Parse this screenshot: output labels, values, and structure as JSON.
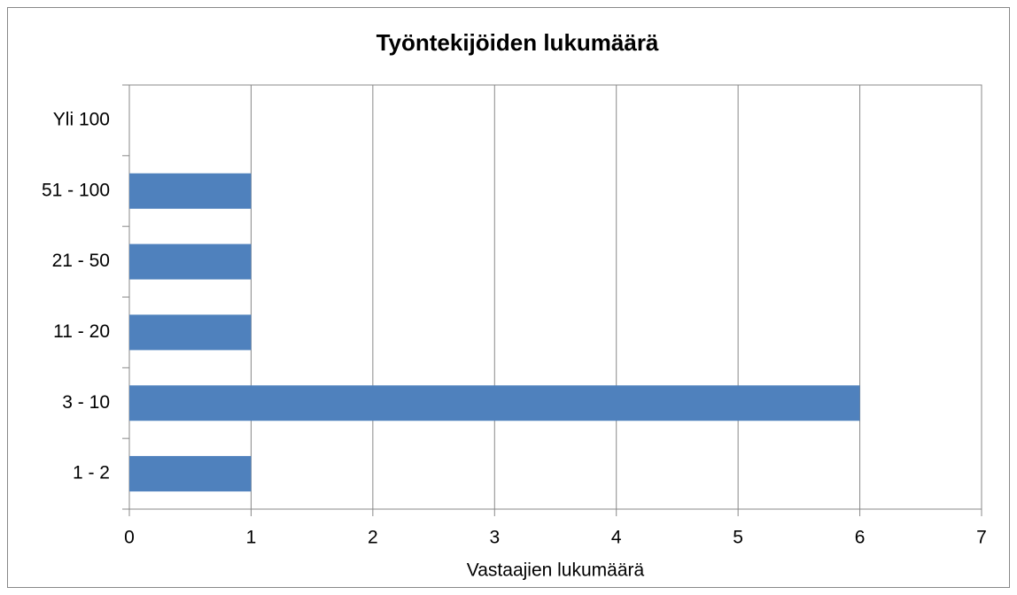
{
  "chart_data": {
    "type": "hbar",
    "title": "Työntekijöiden lukumäärä",
    "x_label": "Vastaajien lukumäärä",
    "categories": [
      "1 - 2",
      "3 - 10",
      "11 - 20",
      "21 - 50",
      "51 - 100",
      "Yli 100"
    ],
    "values": [
      1,
      6,
      1,
      1,
      1,
      0
    ],
    "color": "#4f81bd",
    "xlim": [
      0,
      7
    ],
    "xticks": [
      0,
      1,
      2,
      3,
      4,
      5,
      6,
      7
    ],
    "grid": true
  }
}
